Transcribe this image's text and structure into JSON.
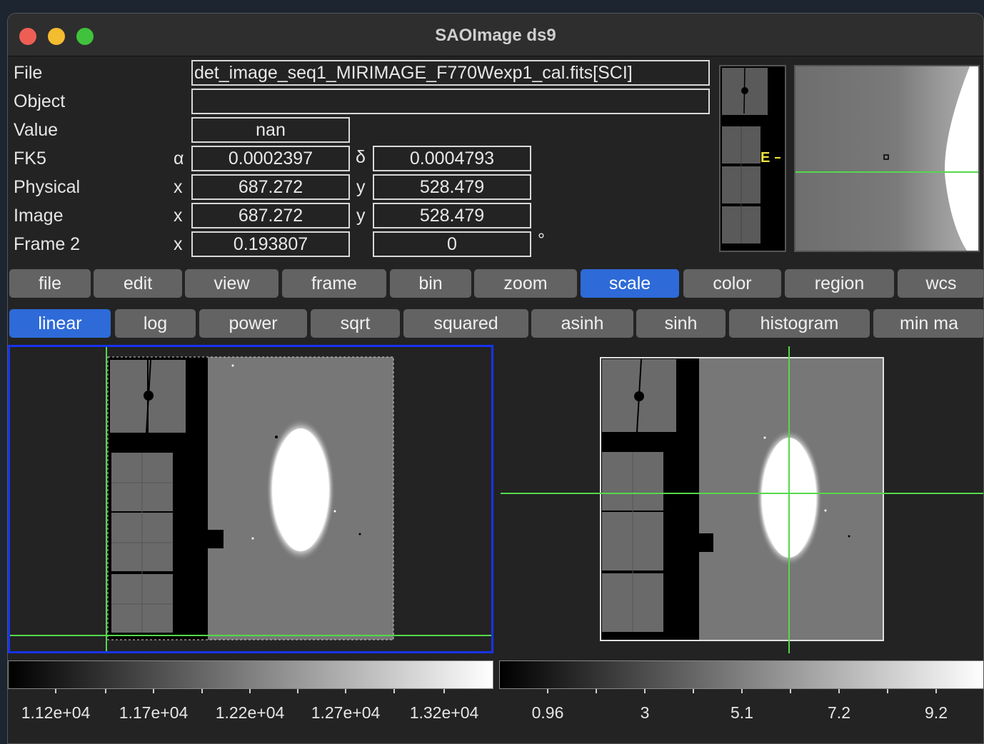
{
  "window": {
    "title": "SAOImage ds9"
  },
  "info": {
    "file_label": "File",
    "file_value": "det_image_seq1_MIRIMAGE_F770Wexp1_cal.fits[SCI]",
    "object_label": "Object",
    "object_value": "",
    "value_label": "Value",
    "value_value": "nan",
    "fk5_label": "FK5",
    "fk5_alpha_sym": "α",
    "fk5_alpha": "0.0002397",
    "fk5_delta_sym": "δ",
    "fk5_delta": "0.0004793",
    "physical_label": "Physical",
    "physical_x_sym": "x",
    "physical_x": "687.272",
    "physical_y_sym": "y",
    "physical_y": "528.479",
    "image_label": "Image",
    "image_x_sym": "x",
    "image_x": "687.272",
    "image_y_sym": "y",
    "image_y": "528.479",
    "frame2_label": "Frame 2",
    "frame2_x_sym": "x",
    "frame2_x": "0.193807",
    "frame2_y": "0",
    "frame2_unit": "°"
  },
  "panner": {
    "compass_label": "E"
  },
  "menu": [
    {
      "label": "file",
      "active": false
    },
    {
      "label": "edit",
      "active": false
    },
    {
      "label": "view",
      "active": false
    },
    {
      "label": "frame",
      "active": false
    },
    {
      "label": "bin",
      "active": false
    },
    {
      "label": "zoom",
      "active": false
    },
    {
      "label": "scale",
      "active": true
    },
    {
      "label": "color",
      "active": false
    },
    {
      "label": "region",
      "active": false
    },
    {
      "label": "wcs",
      "active": false
    }
  ],
  "scale_buttons": [
    {
      "label": "linear",
      "active": true
    },
    {
      "label": "log",
      "active": false
    },
    {
      "label": "power",
      "active": false
    },
    {
      "label": "sqrt",
      "active": false
    },
    {
      "label": "squared",
      "active": false
    },
    {
      "label": "asinh",
      "active": false
    },
    {
      "label": "sinh",
      "active": false
    },
    {
      "label": "histogram",
      "active": false
    },
    {
      "label": "min ma",
      "active": false
    }
  ],
  "colorbars": {
    "left_ticks": [
      "1.12e+04",
      "1.17e+04",
      "1.22e+04",
      "1.27e+04",
      "1.32e+04"
    ],
    "right_ticks": [
      "0.96",
      "3",
      "5.1",
      "7.2",
      "9.2"
    ]
  },
  "colors": {
    "accent": "#2e6ad8",
    "crosshair": "#55d94a",
    "frame_highlight": "#1733ee"
  }
}
